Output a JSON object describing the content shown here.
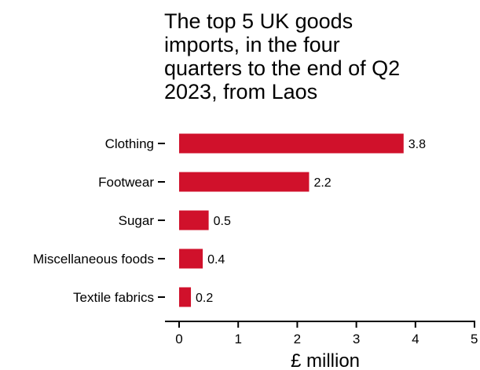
{
  "chart_data": {
    "type": "bar",
    "orientation": "horizontal",
    "title": "The top 5 UK goods\nimports, in the four\nquarters to the end of Q2\n2023, from Laos",
    "categories": [
      "Clothing",
      "Footwear",
      "Sugar",
      "Miscellaneous foods",
      "Textile fabrics"
    ],
    "values": [
      3.8,
      2.2,
      0.5,
      0.4,
      0.2
    ],
    "value_labels": [
      "3.8",
      "2.2",
      "0.5",
      "0.4",
      "0.2"
    ],
    "xlabel": "£ million",
    "ylabel": "",
    "xlim": [
      0,
      5
    ],
    "xticks": [
      0,
      1,
      2,
      3,
      4,
      5
    ],
    "xtick_labels": [
      "0",
      "1",
      "2",
      "3",
      "4",
      "5"
    ],
    "bar_color": "#d0112b",
    "grid": false,
    "legend": "none"
  }
}
